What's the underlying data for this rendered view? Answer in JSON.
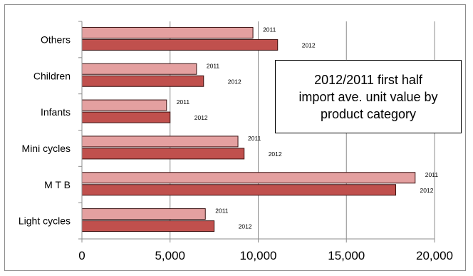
{
  "chart_data": {
    "type": "bar",
    "orientation": "horizontal",
    "title": "2012/2011 first half\nimport  ave. unit value by\nproduct category",
    "categories": [
      "Others",
      "Children",
      "Infants",
      "Mini cycles",
      "M T B",
      "Light cycles"
    ],
    "series": [
      {
        "name": "2011",
        "values": [
          9700,
          6500,
          4800,
          8850,
          18900,
          7000
        ],
        "color": "#e4a0a0"
      },
      {
        "name": "2012",
        "values": [
          11100,
          6900,
          5000,
          9200,
          17800,
          7500
        ],
        "color": "#c0504d"
      }
    ],
    "xlim": [
      0,
      20000
    ],
    "xticks": [
      0,
      5000,
      10000,
      15000,
      20000
    ],
    "xtick_labels": [
      "0",
      "5,000",
      "10,000",
      "15,000",
      "20,000"
    ],
    "grid": true,
    "legend": "none"
  }
}
